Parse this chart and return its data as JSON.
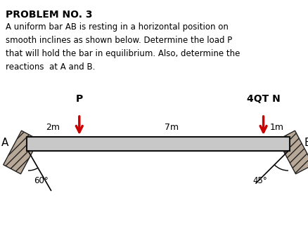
{
  "title": "PROBLEM NO. 3",
  "body_text": "A uniform bar AB is resting in a horizontal position on\nsmooth inclines as shown below. Determine the load P\nthat will hold the bar in equilibrium. Also, determine the\nreactions  at A and B.",
  "label_P": "P",
  "label_4QT": "4QT N",
  "label_2m": "2m",
  "label_7m": "7m",
  "label_1m": "1m",
  "label_A": "A",
  "label_B": "B",
  "label_60": "60°",
  "label_45": "45°",
  "bar_color": "#c8c8c8",
  "bar_edge_color": "#111111",
  "arrow_color": "#cc0000",
  "bg_color": "#ffffff",
  "text_color": "#000000",
  "fig_width": 4.38,
  "fig_height": 3.22,
  "dpi": 100
}
